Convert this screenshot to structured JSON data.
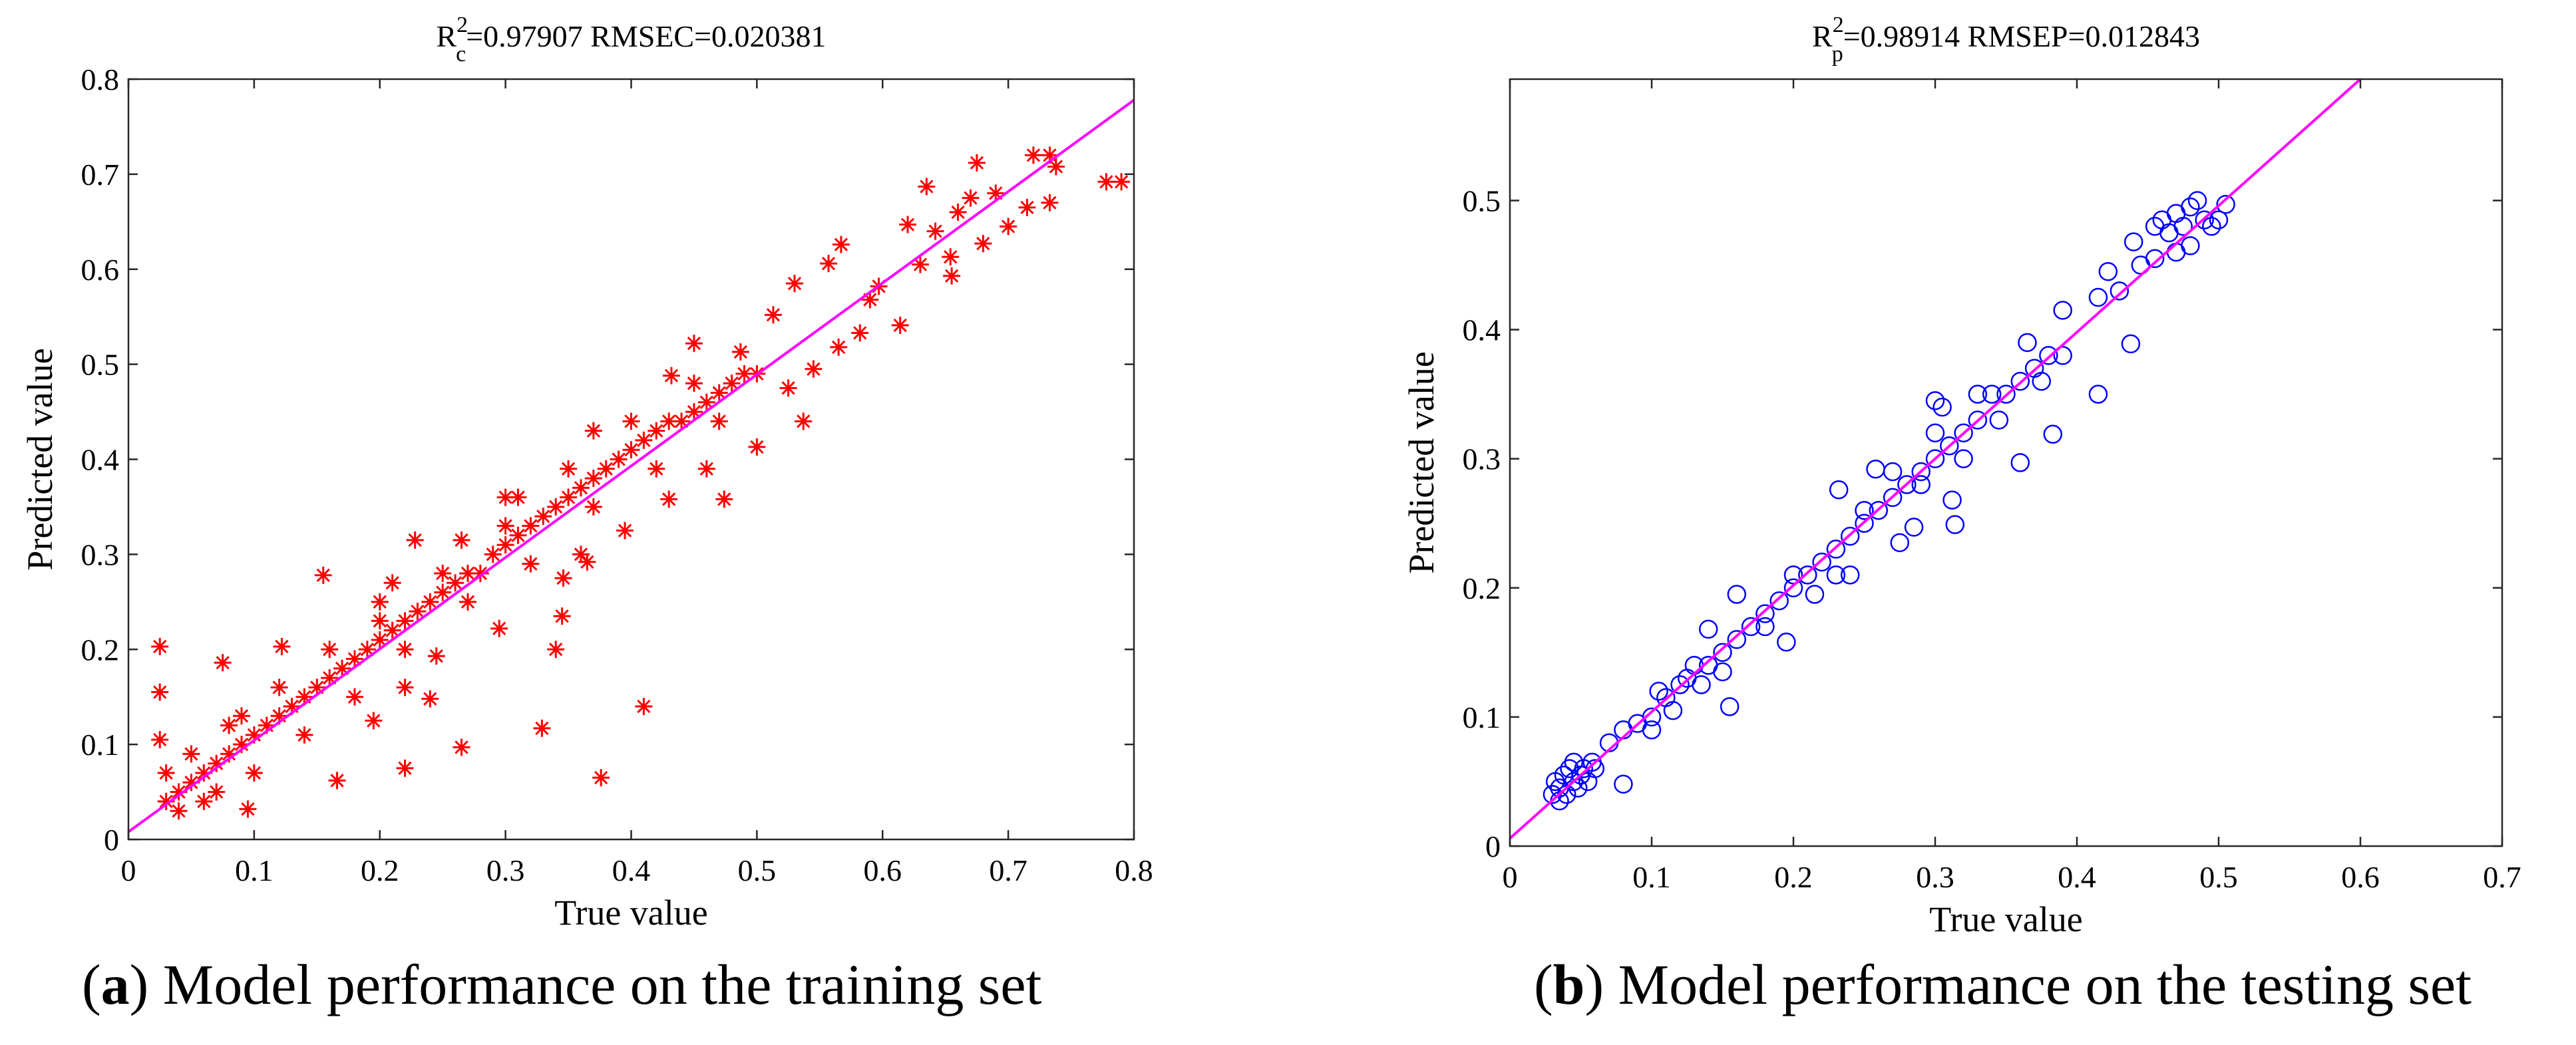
{
  "chart_data": [
    {
      "type": "scatter",
      "title": {
        "base": "R",
        "sup": "2",
        "sub": "c",
        "rest": "=0.97907   RMSEC=0.020381"
      },
      "xlabel": "True value",
      "ylabel": "Predicted value",
      "xlim": [
        0,
        0.8
      ],
      "ylim": [
        0,
        0.8
      ],
      "xticks": [
        "0",
        "0.1",
        "0.2",
        "0.3",
        "0.4",
        "0.5",
        "0.6",
        "0.7",
        "0.8"
      ],
      "yticks": [
        "0",
        "0.1",
        "0.2",
        "0.3",
        "0.4",
        "0.5",
        "0.6",
        "0.7",
        "0.8"
      ],
      "grid": false,
      "marker": "asterisk",
      "marker_color": "#ff0000",
      "fit_line": {
        "color": "#ff00ff",
        "x": [
          0,
          0.8
        ],
        "y": [
          0.008,
          0.778
        ]
      },
      "points": [
        [
          0.03,
          0.04
        ],
        [
          0.04,
          0.05
        ],
        [
          0.05,
          0.06
        ],
        [
          0.06,
          0.07
        ],
        [
          0.07,
          0.08
        ],
        [
          0.08,
          0.09
        ],
        [
          0.09,
          0.1
        ],
        [
          0.1,
          0.11
        ],
        [
          0.11,
          0.12
        ],
        [
          0.12,
          0.13
        ],
        [
          0.13,
          0.14
        ],
        [
          0.14,
          0.15
        ],
        [
          0.15,
          0.16
        ],
        [
          0.16,
          0.17
        ],
        [
          0.17,
          0.18
        ],
        [
          0.18,
          0.19
        ],
        [
          0.19,
          0.2
        ],
        [
          0.2,
          0.21
        ],
        [
          0.21,
          0.22
        ],
        [
          0.22,
          0.23
        ],
        [
          0.23,
          0.24
        ],
        [
          0.24,
          0.25
        ],
        [
          0.25,
          0.26
        ],
        [
          0.26,
          0.27
        ],
        [
          0.27,
          0.28
        ],
        [
          0.28,
          0.28
        ],
        [
          0.29,
          0.3
        ],
        [
          0.3,
          0.31
        ],
        [
          0.31,
          0.32
        ],
        [
          0.32,
          0.33
        ],
        [
          0.33,
          0.34
        ],
        [
          0.34,
          0.35
        ],
        [
          0.35,
          0.36
        ],
        [
          0.36,
          0.37
        ],
        [
          0.37,
          0.38
        ],
        [
          0.38,
          0.39
        ],
        [
          0.39,
          0.4
        ],
        [
          0.4,
          0.41
        ],
        [
          0.41,
          0.42
        ],
        [
          0.42,
          0.43
        ],
        [
          0.43,
          0.44
        ],
        [
          0.44,
          0.44
        ],
        [
          0.45,
          0.45
        ],
        [
          0.46,
          0.46
        ],
        [
          0.47,
          0.47
        ],
        [
          0.48,
          0.48
        ],
        [
          0.49,
          0.49
        ],
        [
          0.5,
          0.49
        ],
        [
          0.05,
          0.09
        ],
        [
          0.06,
          0.04
        ],
        [
          0.08,
          0.12
        ],
        [
          0.1,
          0.07
        ],
        [
          0.12,
          0.16
        ],
        [
          0.14,
          0.11
        ],
        [
          0.16,
          0.2
        ],
        [
          0.18,
          0.15
        ],
        [
          0.2,
          0.23
        ],
        [
          0.22,
          0.2
        ],
        [
          0.25,
          0.28
        ],
        [
          0.27,
          0.25
        ],
        [
          0.3,
          0.33
        ],
        [
          0.32,
          0.29
        ],
        [
          0.35,
          0.39
        ],
        [
          0.37,
          0.35
        ],
        [
          0.4,
          0.44
        ],
        [
          0.42,
          0.39
        ],
        [
          0.45,
          0.48
        ],
        [
          0.47,
          0.44
        ],
        [
          0.03,
          0.07
        ],
        [
          0.04,
          0.03
        ],
        [
          0.07,
          0.05
        ],
        [
          0.09,
          0.13
        ],
        [
          0.025,
          0.203
        ],
        [
          0.025,
          0.155
        ],
        [
          0.025,
          0.105
        ],
        [
          0.075,
          0.186
        ],
        [
          0.155,
          0.278
        ],
        [
          0.122,
          0.203
        ],
        [
          0.228,
          0.315
        ],
        [
          0.376,
          0.065
        ],
        [
          0.41,
          0.14
        ],
        [
          0.329,
          0.117
        ],
        [
          0.265,
          0.097
        ],
        [
          0.22,
          0.075
        ],
        [
          0.34,
          0.2
        ],
        [
          0.345,
          0.235
        ],
        [
          0.346,
          0.275
        ],
        [
          0.43,
          0.358
        ],
        [
          0.474,
          0.358
        ],
        [
          0.395,
          0.325
        ],
        [
          0.5,
          0.413
        ],
        [
          0.537,
          0.44
        ],
        [
          0.45,
          0.522
        ],
        [
          0.513,
          0.552
        ],
        [
          0.53,
          0.585
        ],
        [
          0.557,
          0.606
        ],
        [
          0.567,
          0.626
        ],
        [
          0.614,
          0.541
        ],
        [
          0.582,
          0.533
        ],
        [
          0.565,
          0.518
        ],
        [
          0.545,
          0.495
        ],
        [
          0.525,
          0.475
        ],
        [
          0.597,
          0.582
        ],
        [
          0.59,
          0.568
        ],
        [
          0.635,
          0.687
        ],
        [
          0.655,
          0.593
        ],
        [
          0.654,
          0.613
        ],
        [
          0.63,
          0.605
        ],
        [
          0.675,
          0.712
        ],
        [
          0.72,
          0.72
        ],
        [
          0.733,
          0.72
        ],
        [
          0.778,
          0.692
        ],
        [
          0.79,
          0.692
        ],
        [
          0.738,
          0.708
        ],
        [
          0.733,
          0.67
        ],
        [
          0.68,
          0.627
        ],
        [
          0.7,
          0.645
        ],
        [
          0.66,
          0.66
        ],
        [
          0.67,
          0.675
        ],
        [
          0.69,
          0.68
        ],
        [
          0.715,
          0.665
        ],
        [
          0.62,
          0.647
        ],
        [
          0.642,
          0.64
        ],
        [
          0.095,
          0.032
        ],
        [
          0.166,
          0.062
        ],
        [
          0.36,
          0.3
        ],
        [
          0.365,
          0.292
        ],
        [
          0.295,
          0.222
        ],
        [
          0.24,
          0.148
        ],
        [
          0.245,
          0.193
        ],
        [
          0.21,
          0.27
        ],
        [
          0.22,
          0.16
        ],
        [
          0.195,
          0.125
        ],
        [
          0.2,
          0.25
        ],
        [
          0.3,
          0.36
        ],
        [
          0.31,
          0.36
        ],
        [
          0.265,
          0.315
        ],
        [
          0.37,
          0.43
        ],
        [
          0.432,
          0.488
        ],
        [
          0.46,
          0.39
        ],
        [
          0.487,
          0.513
        ]
      ]
    },
    {
      "type": "scatter",
      "title": {
        "base": "R",
        "sup": "2",
        "sub": "p",
        "rest": "=0.98914   RMSEP=0.012843"
      },
      "xlabel": "True value",
      "ylabel": "Predicted value",
      "xlim": [
        0,
        0.7
      ],
      "ylim": [
        0,
        0.594
      ],
      "xticks": [
        "0",
        "0.1",
        "0.2",
        "0.3",
        "0.4",
        "0.5",
        "0.6",
        "0.7"
      ],
      "yticks": [
        "0",
        "0.1",
        "0.2",
        "0.3",
        "0.4",
        "0.5"
      ],
      "grid": false,
      "marker": "circle",
      "marker_color": "#0000ff",
      "fit_line": {
        "color": "#ff00ff",
        "x": [
          0,
          0.6
        ],
        "y": [
          0.006,
          0.594
        ]
      },
      "points": [
        [
          0.03,
          0.04
        ],
        [
          0.032,
          0.05
        ],
        [
          0.035,
          0.045
        ],
        [
          0.038,
          0.055
        ],
        [
          0.04,
          0.04
        ],
        [
          0.042,
          0.06
        ],
        [
          0.045,
          0.05
        ],
        [
          0.048,
          0.045
        ],
        [
          0.05,
          0.055
        ],
        [
          0.052,
          0.06
        ],
        [
          0.055,
          0.05
        ],
        [
          0.058,
          0.065
        ],
        [
          0.06,
          0.06
        ],
        [
          0.035,
          0.035
        ],
        [
          0.045,
          0.065
        ],
        [
          0.07,
          0.08
        ],
        [
          0.08,
          0.09
        ],
        [
          0.09,
          0.095
        ],
        [
          0.1,
          0.1
        ],
        [
          0.105,
          0.12
        ],
        [
          0.11,
          0.115
        ],
        [
          0.12,
          0.125
        ],
        [
          0.125,
          0.13
        ],
        [
          0.13,
          0.14
        ],
        [
          0.14,
          0.14
        ],
        [
          0.15,
          0.15
        ],
        [
          0.16,
          0.16
        ],
        [
          0.17,
          0.17
        ],
        [
          0.18,
          0.18
        ],
        [
          0.19,
          0.19
        ],
        [
          0.2,
          0.2
        ],
        [
          0.21,
          0.21
        ],
        [
          0.22,
          0.22
        ],
        [
          0.23,
          0.23
        ],
        [
          0.24,
          0.24
        ],
        [
          0.25,
          0.25
        ],
        [
          0.26,
          0.26
        ],
        [
          0.27,
          0.27
        ],
        [
          0.28,
          0.28
        ],
        [
          0.29,
          0.29
        ],
        [
          0.3,
          0.3
        ],
        [
          0.31,
          0.31
        ],
        [
          0.32,
          0.32
        ],
        [
          0.33,
          0.33
        ],
        [
          0.34,
          0.35
        ],
        [
          0.35,
          0.35
        ],
        [
          0.36,
          0.36
        ],
        [
          0.37,
          0.37
        ],
        [
          0.38,
          0.38
        ],
        [
          0.39,
          0.38
        ],
        [
          0.1,
          0.09
        ],
        [
          0.115,
          0.105
        ],
        [
          0.135,
          0.125
        ],
        [
          0.15,
          0.135
        ],
        [
          0.18,
          0.17
        ],
        [
          0.2,
          0.21
        ],
        [
          0.215,
          0.195
        ],
        [
          0.25,
          0.26
        ],
        [
          0.27,
          0.29
        ],
        [
          0.29,
          0.28
        ],
        [
          0.3,
          0.32
        ],
        [
          0.32,
          0.3
        ],
        [
          0.33,
          0.35
        ],
        [
          0.345,
          0.33
        ],
        [
          0.365,
          0.39
        ],
        [
          0.375,
          0.36
        ],
        [
          0.455,
          0.48
        ],
        [
          0.46,
          0.485
        ],
        [
          0.465,
          0.475
        ],
        [
          0.47,
          0.49
        ],
        [
          0.475,
          0.48
        ],
        [
          0.48,
          0.495
        ],
        [
          0.485,
          0.5
        ],
        [
          0.49,
          0.485
        ],
        [
          0.495,
          0.48
        ],
        [
          0.5,
          0.485
        ],
        [
          0.505,
          0.497
        ],
        [
          0.48,
          0.465
        ],
        [
          0.47,
          0.46
        ],
        [
          0.455,
          0.455
        ],
        [
          0.08,
          0.048
        ],
        [
          0.155,
          0.108
        ],
        [
          0.16,
          0.195
        ],
        [
          0.275,
          0.235
        ],
        [
          0.285,
          0.247
        ],
        [
          0.314,
          0.249
        ],
        [
          0.312,
          0.268
        ],
        [
          0.36,
          0.297
        ],
        [
          0.383,
          0.319
        ],
        [
          0.415,
          0.35
        ],
        [
          0.438,
          0.389
        ],
        [
          0.44,
          0.468
        ],
        [
          0.422,
          0.445
        ],
        [
          0.39,
          0.415
        ],
        [
          0.3,
          0.345
        ],
        [
          0.305,
          0.34
        ],
        [
          0.258,
          0.292
        ],
        [
          0.232,
          0.276
        ],
        [
          0.14,
          0.168
        ],
        [
          0.23,
          0.21
        ],
        [
          0.24,
          0.21
        ],
        [
          0.195,
          0.158
        ],
        [
          0.43,
          0.43
        ],
        [
          0.415,
          0.425
        ],
        [
          0.445,
          0.45
        ]
      ]
    }
  ],
  "captions": [
    {
      "label": "a",
      "text": " Model performance on the training set"
    },
    {
      "label": "b",
      "text": " Model performance on the testing set"
    }
  ]
}
